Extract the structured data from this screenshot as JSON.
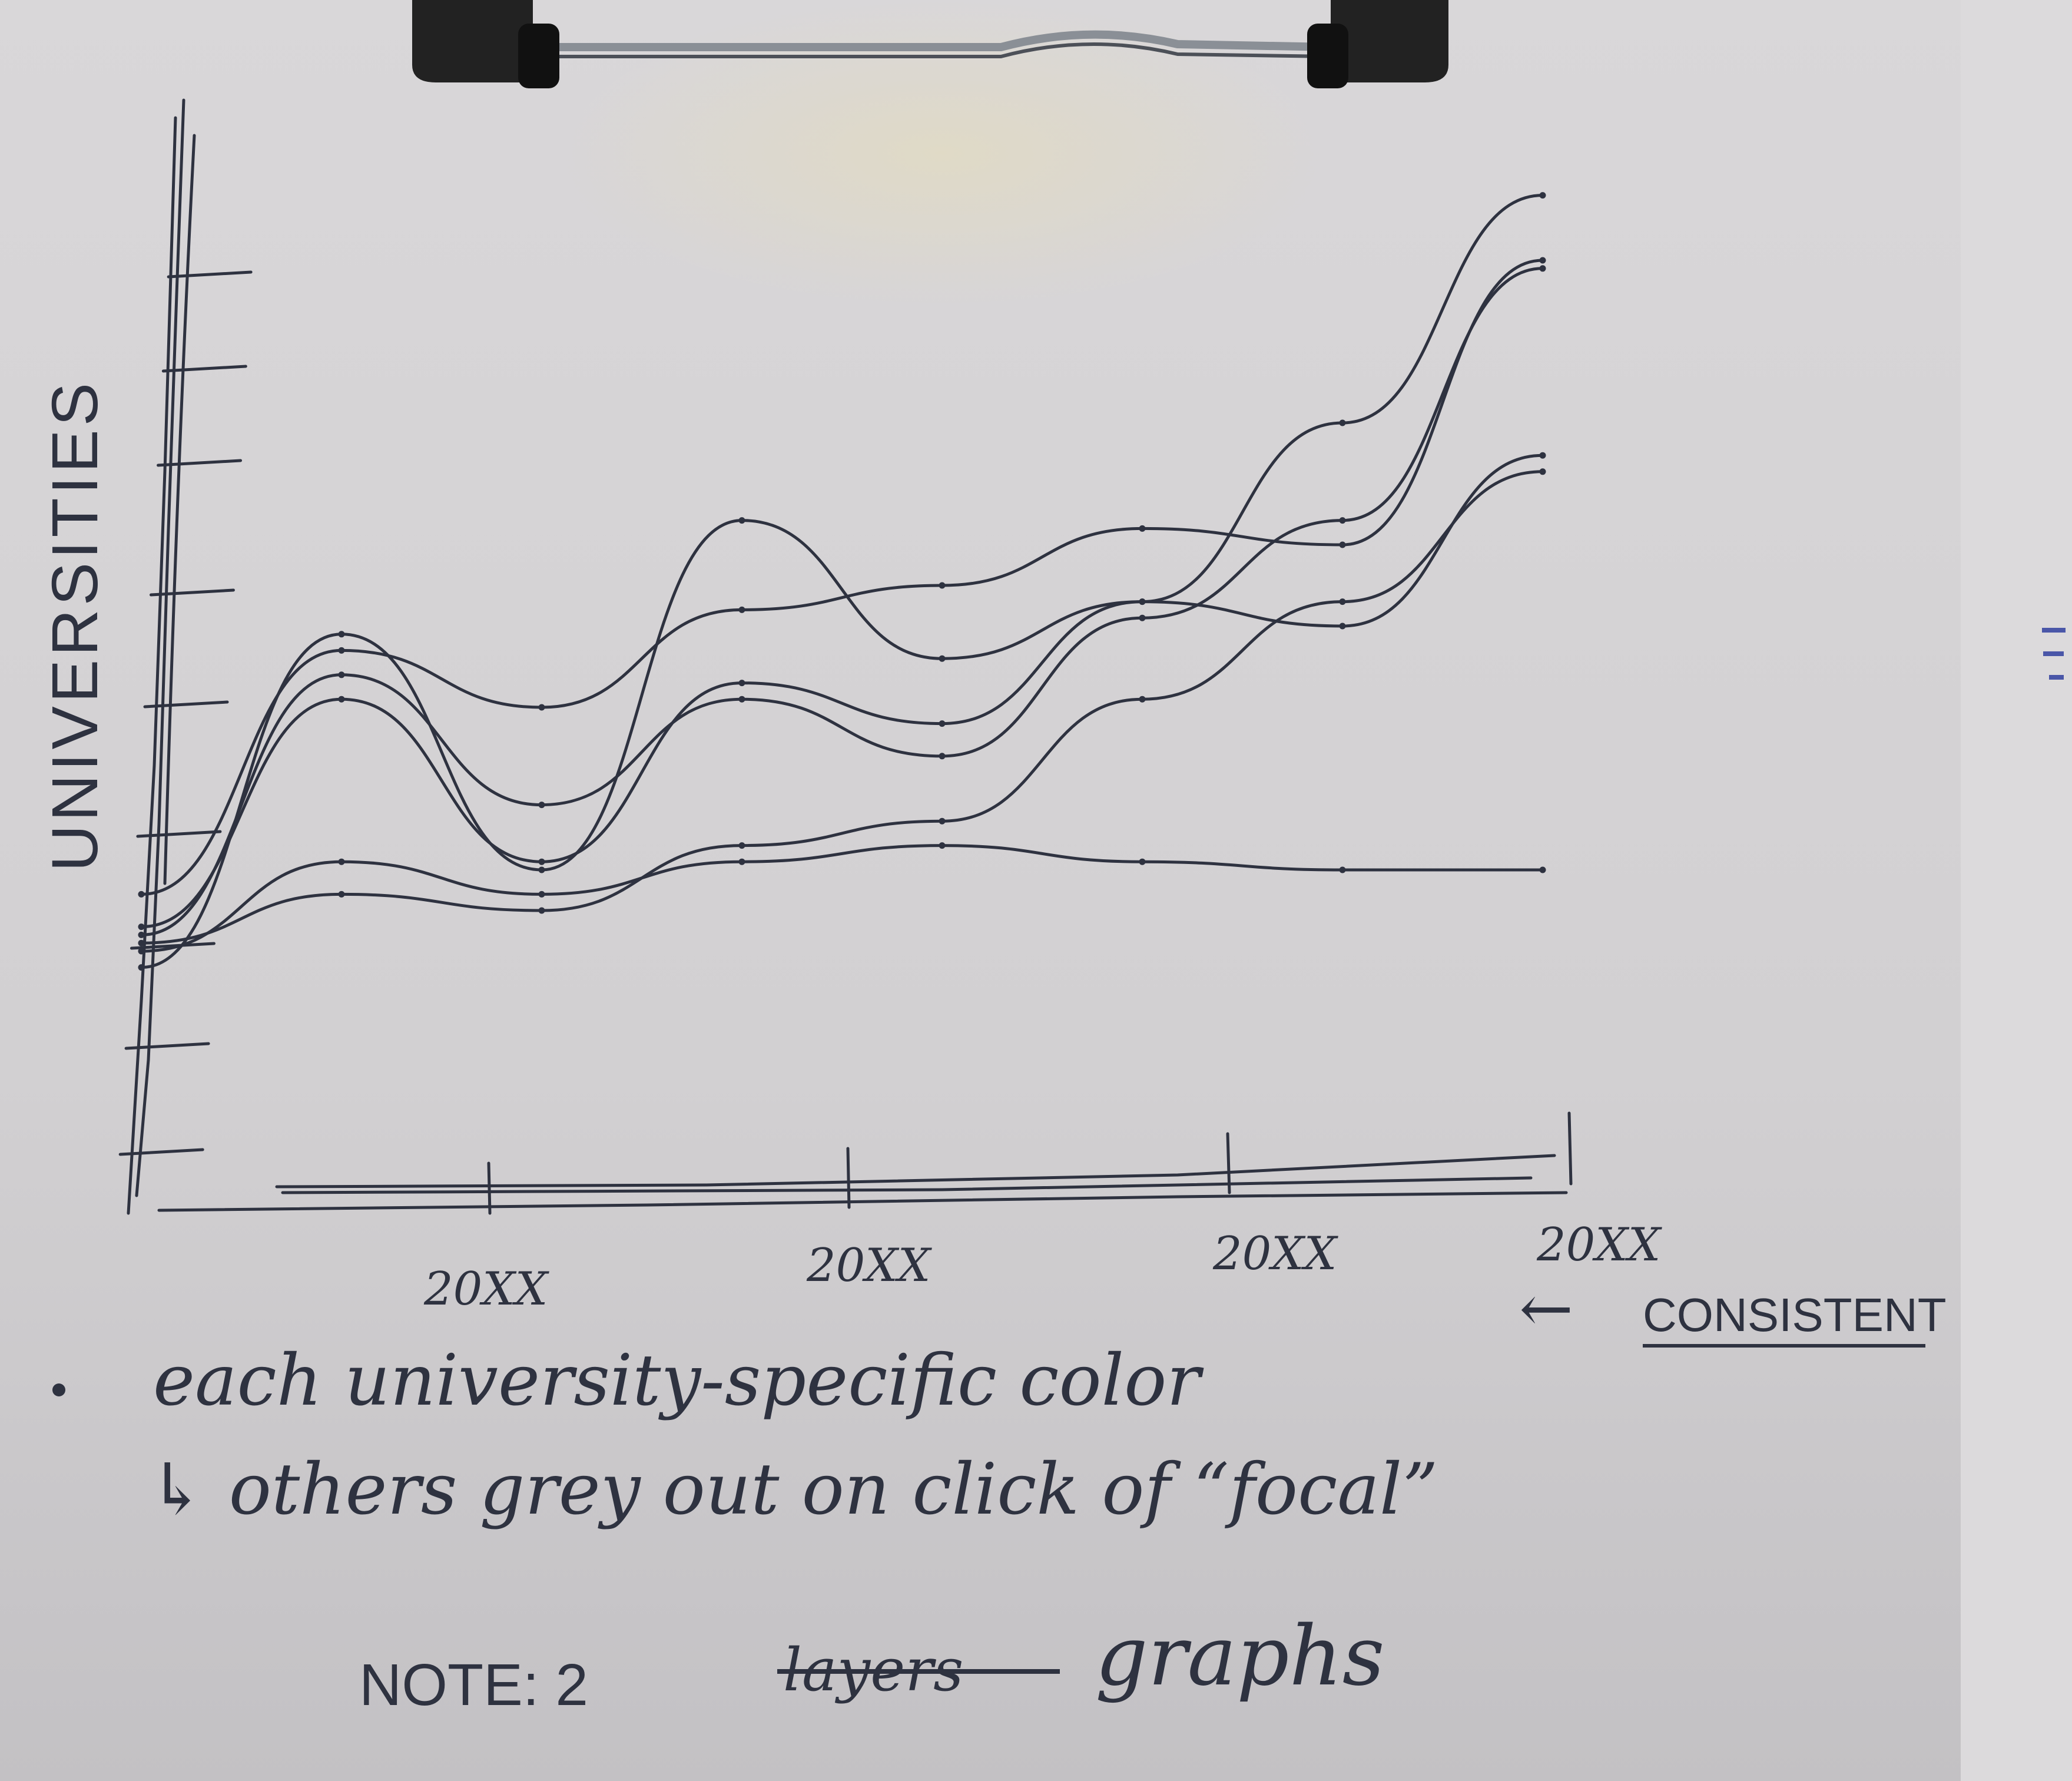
{
  "sketch": {
    "y_axis_label": "UNIVERSITIES",
    "x_ticks": [
      "20XX",
      "20XX",
      "20XX",
      "20XX"
    ],
    "note_line1": "each university-specific color",
    "arrow": "←",
    "consistent": "CONSISTENT",
    "note_line2": "↳ others grey out on click of “focal”",
    "note_prefix": "NOTE: 2",
    "struck_word": "layers",
    "note_suffix": "graphs"
  },
  "chart_data": {
    "type": "line",
    "xlabel": "",
    "ylabel": "UNIVERSITIES",
    "x_tick_labels": [
      "20XX",
      "20XX",
      "20XX",
      "20XX"
    ],
    "grid": false,
    "legend": "none",
    "ink": "#2e3240",
    "series": [
      {
        "values": [
          3.2,
          6.2,
          5.5,
          6.7,
          7.0,
          7.7,
          7.5,
          11.0
        ]
      },
      {
        "values": [
          2.8,
          5.6,
          3.6,
          5.8,
          5.3,
          6.8,
          9.0,
          11.8
        ]
      },
      {
        "values": [
          2.5,
          3.6,
          3.2,
          3.6,
          3.8,
          3.6,
          3.5,
          3.5
        ]
      },
      {
        "values": [
          2.6,
          3.2,
          3.0,
          3.8,
          4.1,
          5.6,
          6.8,
          8.4
        ]
      },
      {
        "values": [
          2.3,
          6.4,
          3.5,
          7.8,
          6.1,
          6.8,
          6.5,
          8.6
        ]
      },
      {
        "values": [
          2.7,
          5.9,
          4.3,
          5.6,
          4.9,
          6.6,
          7.8,
          10.9
        ]
      }
    ]
  }
}
